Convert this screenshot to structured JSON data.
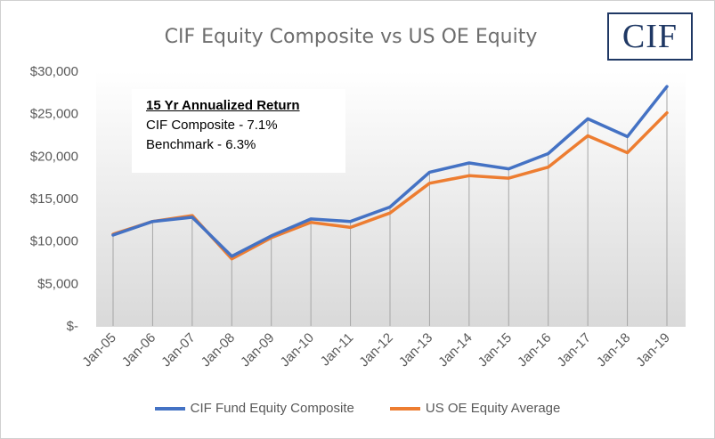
{
  "chart_data": {
    "type": "line",
    "title": "CIF Equity Composite  vs US OE Equity",
    "categories": [
      "Jan-05",
      "Jan-06",
      "Jan-07",
      "Jan-08",
      "Jan-09",
      "Jan-10",
      "Jan-11",
      "Jan-12",
      "Jan-13",
      "Jan-14",
      "Jan-15",
      "Jan-16",
      "Jan-17",
      "Jan-18",
      "Jan-19"
    ],
    "series": [
      {
        "name": "CIF Fund Equity Composite",
        "color": "#4472c4",
        "values": [
          10700,
          12300,
          12800,
          8200,
          10600,
          12600,
          12300,
          14000,
          18100,
          19200,
          18500,
          20300,
          24400,
          22300,
          28200
        ]
      },
      {
        "name": "US OE Equity Average",
        "color": "#ed7d31",
        "values": [
          10800,
          12300,
          13000,
          7900,
          10400,
          12200,
          11600,
          13300,
          16800,
          17700,
          17400,
          18700,
          22400,
          20400,
          25100
        ]
      }
    ],
    "ylim": [
      0,
      30000
    ],
    "yticks": [
      0,
      5000,
      10000,
      15000,
      20000,
      25000,
      30000
    ],
    "ytick_labels": [
      "$-",
      "$5,000",
      "$10,000",
      "$15,000",
      "$20,000",
      "$25,000",
      "$30,000"
    ],
    "grid": "vertical drop lines",
    "background": "gradient white to light gray",
    "legend_position": "bottom"
  },
  "logo": {
    "text": "CIF"
  },
  "annotation": {
    "heading": "15 Yr Annualized Return",
    "lines": [
      "CIF Composite - 7.1%",
      "Benchmark - 6.3%"
    ]
  }
}
